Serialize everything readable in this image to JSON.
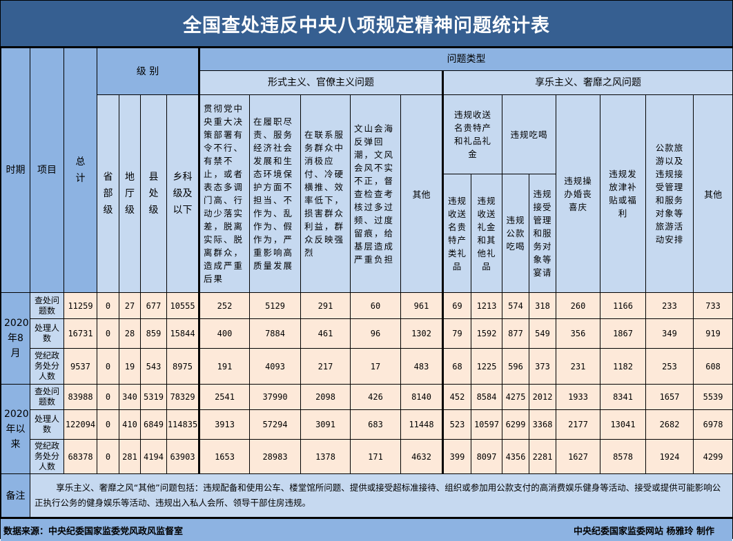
{
  "title": "全国查处违反中央八项规定精神问题统计表",
  "header": {
    "period": "时期",
    "item": "项目",
    "total": "总计",
    "level_group": "级 别",
    "levels": [
      "省部级",
      "地厅级",
      "县处级",
      "乡科级及以下"
    ],
    "problem_type": "问题类型",
    "formalism_group": "形式主义、官僚主义问题",
    "formalism": [
      "贯彻党中央重大决策部署有令不行、有禁不止，或者表态多调门高、行动少落实差，脱离实际、脱离群众，造成严重后果",
      "在履职尽责、服务经济社会发展和生态环境保护方面不担当、不作为、乱作为、假作为，严重影响高质量发展",
      "在联系服务群众中消极应付、冷硬横推、效率低下，损害群众利益，群众反映强烈",
      "文山会海反弹回潮，文风会风不实不正，督查检查考核过多过频、过度留痕，给基层造成严重负担",
      "其他"
    ],
    "hedonism_group": "享乐主义、奢靡之风问题",
    "gifts_group": "违规收送名贵特产和礼品礼金",
    "gifts": [
      "违规收送名贵特产类礼品",
      "违规收送礼金和其他礼品"
    ],
    "dining_group": "违规吃喝",
    "dining": [
      "违规公款吃喝",
      "违规接受管理和服务对象等宴请"
    ],
    "hedonism_other": [
      "违规操办婚丧喜庆",
      "违规发放津补贴或福利",
      "公款旅游以及违规接受管理和服务对象等旅游活动安排",
      "其他"
    ]
  },
  "periods": [
    {
      "label": "2020年8月",
      "rows": [
        {
          "item": "查处问题数",
          "values": [
            11259,
            0,
            27,
            677,
            10555,
            252,
            5129,
            291,
            60,
            961,
            69,
            1213,
            574,
            318,
            260,
            1166,
            233,
            733
          ]
        },
        {
          "item": "处理人数",
          "values": [
            16731,
            0,
            28,
            859,
            15844,
            400,
            7884,
            461,
            96,
            1302,
            79,
            1592,
            877,
            549,
            356,
            1867,
            349,
            919
          ]
        },
        {
          "item": "党纪政务处分人数",
          "values": [
            9537,
            0,
            19,
            543,
            8975,
            191,
            4093,
            217,
            17,
            483,
            68,
            1225,
            596,
            373,
            231,
            1182,
            253,
            608
          ]
        }
      ]
    },
    {
      "label": "2020年以来",
      "rows": [
        {
          "item": "查处问题数",
          "values": [
            83988,
            0,
            340,
            5319,
            78329,
            2541,
            37990,
            2098,
            426,
            8140,
            452,
            8584,
            4275,
            2012,
            1933,
            8341,
            1657,
            5539
          ]
        },
        {
          "item": "处理人数",
          "values": [
            122094,
            0,
            410,
            6849,
            114835,
            3913,
            57294,
            3091,
            683,
            11448,
            523,
            10597,
            6299,
            3368,
            2177,
            13041,
            2682,
            6978
          ]
        },
        {
          "item": "党纪政务处分人数",
          "values": [
            68378,
            0,
            281,
            4194,
            63903,
            1653,
            28983,
            1378,
            171,
            4632,
            399,
            8097,
            4356,
            2281,
            1627,
            8578,
            1924,
            4299
          ]
        }
      ]
    }
  ],
  "note": {
    "label": "备注",
    "text": "享乐主义、奢靡之风“其他”问题包括：违规配备和使用公车、楼堂馆所问题、提供或接受超标准接待、组织或参加用公款支付的高消费娱乐健身等活动、接受或提供可能影响公正执行公务的健身娱乐等活动、违规出入私人会所、领导干部住房违规。"
  },
  "footer": {
    "source": "数据来源：中央纪委国家监委党风政风监督室",
    "credit": "中央纪委国家监委网站 杨雅玲 制作"
  },
  "colors": {
    "title_bg": "#365f91",
    "header_dark": "#8db3e2",
    "header_light": "#c6d9f0",
    "data_bg": "#fde9d9"
  }
}
